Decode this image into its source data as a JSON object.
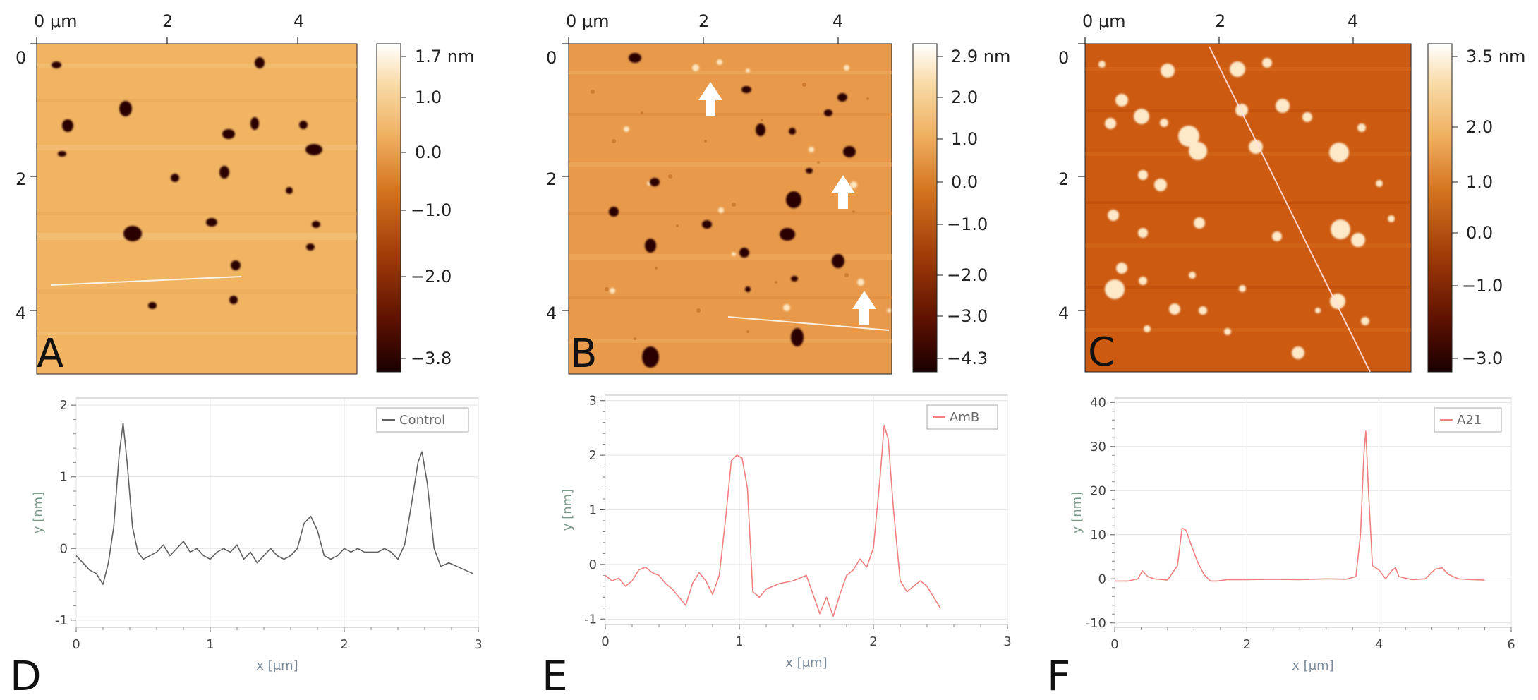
{
  "figure": {
    "panels": [
      {
        "id": "A",
        "letter": "A",
        "x_axis_ticks": [
          "0 μm",
          "2",
          "4"
        ],
        "y_axis_ticks": [
          "0",
          "2",
          "4"
        ],
        "colorbar_ticks": [
          "1.7 nm",
          "1.0",
          "0.0",
          "−1.0",
          "−2.0",
          "−3.8"
        ],
        "colormap": [
          "#1a0000",
          "#5a1000",
          "#a03a08",
          "#d4731e",
          "#efb060",
          "#f8dba8",
          "#ffffff"
        ],
        "background": "#f0b462"
      },
      {
        "id": "B",
        "letter": "B",
        "x_axis_ticks": [
          "0 μm",
          "2",
          "4"
        ],
        "y_axis_ticks": [
          "0",
          "2",
          "4"
        ],
        "colorbar_ticks": [
          "2.9 nm",
          "2.0",
          "1.0",
          "0.0",
          "−1.0",
          "−2.0",
          "−3.0",
          "−4.3"
        ],
        "colormap": [
          "#1a0000",
          "#5a1000",
          "#a03a08",
          "#d4731e",
          "#efb060",
          "#f8dba8",
          "#ffffff"
        ],
        "background": "#e89a4a"
      },
      {
        "id": "C",
        "letter": "C",
        "x_axis_ticks": [
          "0 μm",
          "2",
          "4"
        ],
        "y_axis_ticks": [
          "0",
          "2",
          "4"
        ],
        "colorbar_ticks": [
          "3.5 nm",
          "2.0",
          "1.0",
          "0.0",
          "−1.0",
          "−3.0"
        ],
        "colormap": [
          "#1a0000",
          "#5a1000",
          "#a03a08",
          "#d4731e",
          "#efb060",
          "#f8dba8",
          "#ffffff"
        ],
        "background": "#cc5a10"
      }
    ]
  },
  "chart_data": [
    {
      "type": "line",
      "panel": "D",
      "legend": "Control",
      "xlabel": "x [μm]",
      "ylabel": "y [nm]",
      "xlim": [
        0,
        3
      ],
      "ylim": [
        -1.1,
        2.1
      ],
      "x_ticks": [
        "0",
        "1",
        "2",
        "3"
      ],
      "y_ticks": [
        "-1",
        "0",
        "1",
        "2"
      ],
      "color": "#606060",
      "series": [
        {
          "name": "Control",
          "x": [
            0,
            0.05,
            0.1,
            0.15,
            0.2,
            0.24,
            0.28,
            0.32,
            0.35,
            0.38,
            0.42,
            0.46,
            0.5,
            0.55,
            0.6,
            0.65,
            0.7,
            0.75,
            0.8,
            0.85,
            0.9,
            0.95,
            1.0,
            1.05,
            1.1,
            1.15,
            1.2,
            1.25,
            1.3,
            1.35,
            1.4,
            1.45,
            1.5,
            1.55,
            1.6,
            1.65,
            1.7,
            1.75,
            1.8,
            1.85,
            1.9,
            1.95,
            2.0,
            2.05,
            2.1,
            2.15,
            2.2,
            2.25,
            2.3,
            2.35,
            2.4,
            2.45,
            2.5,
            2.55,
            2.58,
            2.62,
            2.67,
            2.72,
            2.78,
            2.84,
            2.9,
            2.96
          ],
          "values": [
            -0.1,
            -0.2,
            -0.3,
            -0.35,
            -0.5,
            -0.2,
            0.3,
            1.3,
            1.75,
            1.2,
            0.3,
            -0.05,
            -0.15,
            -0.1,
            -0.05,
            0.05,
            -0.1,
            0.0,
            0.1,
            -0.05,
            0.0,
            -0.1,
            -0.15,
            -0.05,
            0.0,
            -0.05,
            0.05,
            -0.15,
            -0.05,
            -0.2,
            -0.1,
            0.0,
            -0.1,
            -0.15,
            -0.1,
            0.0,
            0.35,
            0.45,
            0.25,
            -0.1,
            -0.15,
            -0.1,
            0.0,
            -0.05,
            0.0,
            -0.05,
            -0.05,
            -0.05,
            0.0,
            -0.05,
            -0.15,
            0.05,
            0.6,
            1.2,
            1.35,
            0.9,
            0.0,
            -0.25,
            -0.2,
            -0.25,
            -0.3,
            -0.35
          ]
        }
      ]
    },
    {
      "type": "line",
      "panel": "E",
      "legend": "AmB",
      "xlabel": "x [μm]",
      "ylabel": "y [nm]",
      "xlim": [
        0,
        3
      ],
      "ylim": [
        -1.1,
        3.1
      ],
      "x_ticks": [
        "0",
        "1",
        "2",
        "3"
      ],
      "y_ticks": [
        "-1",
        "0",
        "1",
        "2",
        "3"
      ],
      "color": "#f08080",
      "series": [
        {
          "name": "AmB",
          "x": [
            0,
            0.05,
            0.1,
            0.15,
            0.2,
            0.25,
            0.3,
            0.35,
            0.4,
            0.45,
            0.5,
            0.55,
            0.6,
            0.65,
            0.7,
            0.75,
            0.8,
            0.85,
            0.9,
            0.94,
            0.98,
            1.02,
            1.06,
            1.1,
            1.15,
            1.2,
            1.3,
            1.4,
            1.5,
            1.6,
            1.65,
            1.7,
            1.75,
            1.8,
            1.85,
            1.9,
            1.95,
            2.0,
            2.05,
            2.08,
            2.11,
            2.15,
            2.2,
            2.25,
            2.3,
            2.35,
            2.4,
            2.45,
            2.5
          ],
          "values": [
            -0.2,
            -0.3,
            -0.25,
            -0.4,
            -0.3,
            -0.1,
            -0.05,
            -0.15,
            -0.2,
            -0.35,
            -0.45,
            -0.6,
            -0.75,
            -0.35,
            -0.15,
            -0.3,
            -0.55,
            -0.2,
            0.9,
            1.9,
            2.0,
            1.95,
            1.4,
            -0.5,
            -0.6,
            -0.45,
            -0.35,
            -0.3,
            -0.2,
            -0.9,
            -0.6,
            -0.95,
            -0.55,
            -0.2,
            -0.1,
            0.1,
            -0.05,
            0.3,
            1.6,
            2.55,
            2.3,
            1.0,
            -0.3,
            -0.5,
            -0.4,
            -0.3,
            -0.4,
            -0.6,
            -0.8
          ]
        }
      ]
    },
    {
      "type": "line",
      "panel": "F",
      "legend": "A21",
      "xlabel": "x [μm]",
      "ylabel": "y [nm]",
      "xlim": [
        0,
        6
      ],
      "ylim": [
        -11,
        41
      ],
      "x_ticks": [
        "0",
        "2",
        "4",
        "6"
      ],
      "y_ticks": [
        "-10",
        "0",
        "10",
        "20",
        "30",
        "40"
      ],
      "color": "#f08080",
      "series": [
        {
          "name": "A21",
          "x": [
            0,
            0.2,
            0.35,
            0.42,
            0.5,
            0.6,
            0.8,
            0.95,
            1.02,
            1.08,
            1.15,
            1.25,
            1.35,
            1.45,
            1.55,
            1.7,
            2.0,
            2.4,
            2.8,
            3.2,
            3.5,
            3.65,
            3.72,
            3.77,
            3.8,
            3.84,
            3.9,
            4.0,
            4.1,
            4.2,
            4.25,
            4.3,
            4.5,
            4.7,
            4.85,
            4.95,
            5.05,
            5.2,
            5.4,
            5.6
          ],
          "values": [
            -0.5,
            -0.5,
            0.0,
            1.8,
            0.5,
            0.0,
            -0.3,
            3.0,
            11.5,
            11.0,
            8.0,
            4.0,
            1.0,
            -0.5,
            -0.5,
            -0.2,
            -0.2,
            -0.1,
            -0.2,
            0.0,
            -0.1,
            0.5,
            10.0,
            28.0,
            33.5,
            20.0,
            3.0,
            2.0,
            0.0,
            2.0,
            2.5,
            0.5,
            -0.2,
            0.0,
            2.2,
            2.5,
            1.0,
            0.0,
            -0.2,
            -0.3
          ]
        }
      ]
    }
  ],
  "panel_letters": {
    "D": "D",
    "E": "E",
    "F": "F"
  }
}
